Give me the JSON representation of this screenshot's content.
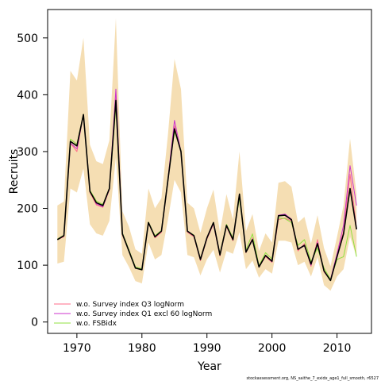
{
  "chart_data": {
    "type": "line",
    "title": "",
    "xlabel": "Year",
    "ylabel": "Recruits",
    "xlim": [
      1965.5,
      2015.3
    ],
    "ylim": [
      -20,
      550
    ],
    "x_ticks": [
      1970,
      1980,
      1990,
      2000,
      2010
    ],
    "y_ticks": [
      0,
      100,
      200,
      300,
      400,
      500
    ],
    "grid": false,
    "legend_position": "bottom-left",
    "footer": "stockassessment.org, NS_saithe_7_exidx_age1_full_smooth, r6527",
    "x": [
      1967,
      1968,
      1969,
      1970,
      1971,
      1972,
      1973,
      1974,
      1975,
      1976,
      1977,
      1978,
      1979,
      1980,
      1981,
      1982,
      1983,
      1984,
      1985,
      1986,
      1987,
      1988,
      1989,
      1990,
      1991,
      1992,
      1993,
      1994,
      1995,
      1996,
      1997,
      1998,
      1999,
      2000,
      2001,
      2002,
      2003,
      2004,
      2005,
      2006,
      2007,
      2008,
      2009,
      2010,
      2011,
      2012,
      2013
    ],
    "confidence_band": {
      "color": "#f5deb3",
      "lower": [
        103,
        106,
        235,
        228,
        270,
        172,
        156,
        152,
        178,
        290,
        118,
        97,
        72,
        68,
        140,
        110,
        118,
        180,
        250,
        228,
        118,
        114,
        82,
        110,
        127,
        87,
        125,
        120,
        158,
        93,
        108,
        78,
        93,
        85,
        143,
        143,
        140,
        100,
        106,
        80,
        114,
        65,
        55,
        80,
        93,
        150,
        115
      ],
      "upper": [
        205,
        212,
        442,
        425,
        500,
        312,
        283,
        278,
        320,
        535,
        195,
        168,
        128,
        120,
        235,
        200,
        218,
        330,
        463,
        410,
        210,
        200,
        157,
        200,
        233,
        158,
        225,
        180,
        300,
        160,
        190,
        125,
        156,
        140,
        245,
        248,
        238,
        175,
        185,
        138,
        188,
        130,
        98,
        150,
        205,
        323,
        225
      ]
    },
    "series": [
      {
        "name": "",
        "color": "#000000",
        "width": 1.6,
        "values": [
          145,
          152,
          318,
          310,
          365,
          230,
          210,
          205,
          235,
          390,
          155,
          125,
          95,
          92,
          175,
          150,
          160,
          250,
          340,
          300,
          160,
          152,
          110,
          148,
          175,
          118,
          170,
          145,
          225,
          123,
          145,
          97,
          117,
          107,
          187,
          188,
          180,
          128,
          135,
          102,
          138,
          90,
          73,
          115,
          155,
          235,
          163
        ]
      },
      {
        "name": "w.o. Survey index Q3 logNorm",
        "color": "#ff6b8a",
        "width": 1,
        "values": [
          145,
          150,
          315,
          300,
          366,
          228,
          206,
          202,
          233,
          400,
          153,
          125,
          95,
          92,
          174,
          148,
          158,
          248,
          345,
          298,
          158,
          150,
          108,
          146,
          172,
          116,
          168,
          143,
          225,
          122,
          148,
          97,
          115,
          105,
          180,
          183,
          178,
          125,
          138,
          98,
          145,
          88,
          75,
          118,
          160,
          260,
          165
        ]
      },
      {
        "name": "w.o. Survey index Q1 excl 60 logNorm",
        "color": "#cc33cc",
        "width": 1,
        "values": [
          146,
          153,
          315,
          305,
          365,
          232,
          208,
          203,
          234,
          410,
          155,
          126,
          95,
          92,
          175,
          151,
          160,
          252,
          355,
          300,
          160,
          152,
          110,
          148,
          173,
          118,
          170,
          145,
          222,
          124,
          146,
          97,
          117,
          106,
          188,
          190,
          181,
          128,
          134,
          100,
          140,
          90,
          75,
          120,
          170,
          275,
          205
        ]
      },
      {
        "name": "w.o. FSBidx",
        "color": "#90e040",
        "width": 1,
        "values": [
          146,
          153,
          322,
          313,
          366,
          232,
          213,
          207,
          236,
          378,
          157,
          127,
          97,
          94,
          176,
          152,
          161,
          252,
          335,
          302,
          160,
          153,
          111,
          148,
          174,
          120,
          172,
          148,
          218,
          127,
          155,
          99,
          122,
          111,
          183,
          182,
          175,
          135,
          145,
          106,
          130,
          95,
          75,
          110,
          115,
          170,
          115
        ]
      }
    ]
  }
}
